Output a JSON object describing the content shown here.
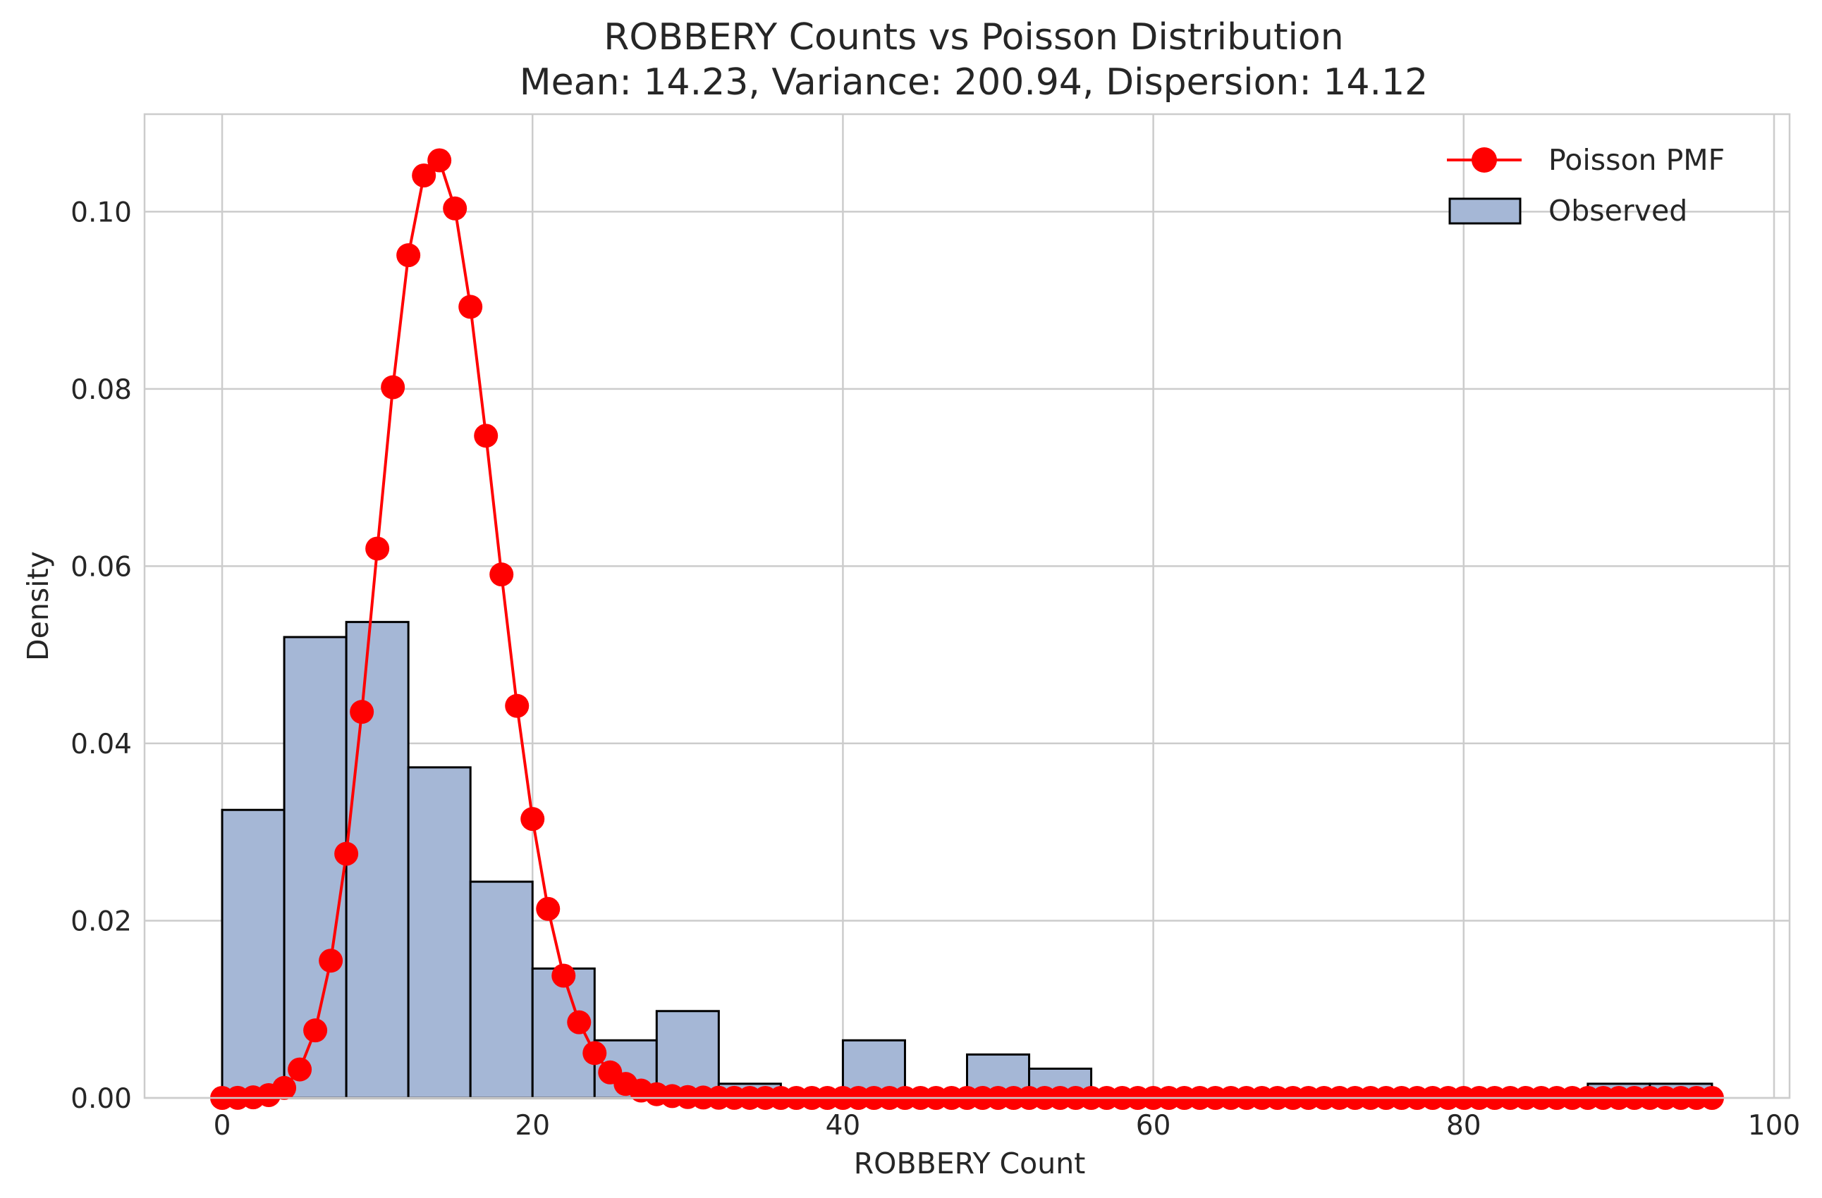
{
  "chart_data": {
    "type": "bar",
    "title": "ROBBERY Counts vs Poisson Distribution",
    "subtitle": "Mean: 14.23, Variance: 200.94, Dispersion: 14.12",
    "xlabel": "ROBBERY Count",
    "ylabel": "Density",
    "xlim": [
      -5,
      101
    ],
    "ylim": [
      0,
      0.111
    ],
    "xticks": [
      0,
      20,
      40,
      60,
      80,
      100
    ],
    "xtick_labels": [
      "0",
      "20",
      "40",
      "60",
      "80",
      "100"
    ],
    "yticks": [
      0,
      0.02,
      0.04,
      0.06,
      0.08,
      0.1
    ],
    "ytick_labels": [
      "0.00",
      "0.02",
      "0.04",
      "0.06",
      "0.08",
      "0.10"
    ],
    "grid": true,
    "legend_position": "top-right",
    "colors": {
      "bar_fill": "#a5b7d6",
      "bar_edge": "#000000",
      "poisson": "#ff0000",
      "grid": "#cccccc",
      "text": "#262626"
    },
    "histogram": {
      "name": "Observed",
      "bin_width": 4,
      "bin_edges": [
        0,
        4,
        8,
        12,
        16,
        20,
        24,
        28,
        32,
        36,
        40,
        44,
        48,
        52,
        56,
        60,
        64,
        68,
        72,
        76,
        80,
        84,
        88,
        92,
        96
      ],
      "values": [
        0.0325,
        0.052,
        0.0537,
        0.0373,
        0.0244,
        0.0146,
        0.0065,
        0.0098,
        0.0016,
        0,
        0.0065,
        0,
        0.0049,
        0.0033,
        0,
        0,
        0,
        0,
        0,
        0,
        0,
        0,
        0.0016,
        0.0016
      ]
    },
    "poisson": {
      "name": "Poisson PMF",
      "mean": 14.23,
      "x_min": 0,
      "x_max": 96
    }
  }
}
